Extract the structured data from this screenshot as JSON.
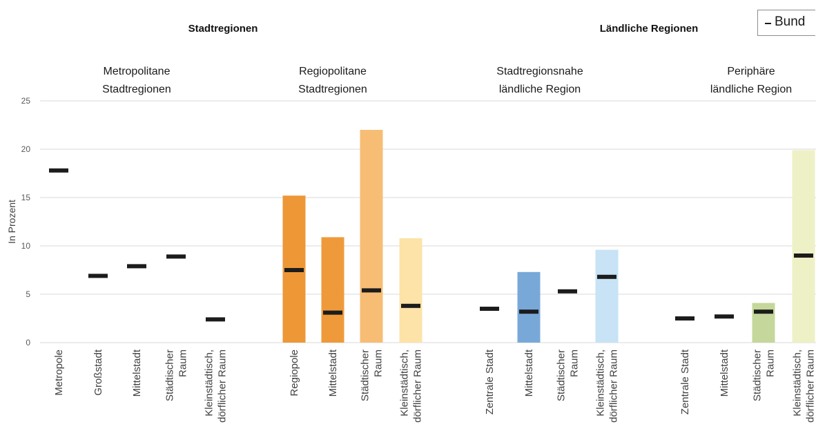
{
  "chart_data": {
    "type": "bar",
    "ylabel": "In Prozent",
    "ylim": [
      0,
      25
    ],
    "yticks": [
      "0",
      "5",
      "10",
      "15",
      "20",
      "25"
    ],
    "grid": true,
    "legend": {
      "label": "Bund",
      "marker": "–",
      "placement": "top-right"
    },
    "super_groups": [
      {
        "label": "Stadtregionen"
      },
      {
        "label": "Ländliche Regionen"
      }
    ],
    "groups": [
      {
        "label_lines": [
          "Metropolitane",
          "Stadtregionen"
        ],
        "categories": [
          {
            "label_lines": [
              "Metropole"
            ],
            "value": null,
            "bund": 17.8,
            "color": "#ffffff"
          },
          {
            "label_lines": [
              "Großstadt"
            ],
            "value": null,
            "bund": 6.9,
            "color": "#ffffff"
          },
          {
            "label_lines": [
              "Mittelstadt"
            ],
            "value": null,
            "bund": 7.9,
            "color": "#ffffff"
          },
          {
            "label_lines": [
              "Städtischer",
              "Raum"
            ],
            "value": null,
            "bund": 8.9,
            "color": "#ffffff"
          },
          {
            "label_lines": [
              "Kleinstädtisch,",
              "dörflicher Raum"
            ],
            "value": null,
            "bund": 2.4,
            "color": "#ffffff"
          }
        ]
      },
      {
        "label_lines": [
          "Regiopolitane",
          "Stadtregionen"
        ],
        "categories": [
          {
            "label_lines": [
              "Regiopole"
            ],
            "value": 15.2,
            "bund": 7.5,
            "color": "#ed9737"
          },
          {
            "label_lines": [
              "Mittelstadt"
            ],
            "value": 10.9,
            "bund": 3.1,
            "color": "#ef9a3a"
          },
          {
            "label_lines": [
              "Städtischer",
              "Raum"
            ],
            "value": 22.0,
            "bund": 5.4,
            "color": "#f7bd74"
          },
          {
            "label_lines": [
              "Kleinstädtisch,",
              "dörflicher Raum"
            ],
            "value": 10.8,
            "bund": 3.8,
            "color": "#fde3a8"
          }
        ]
      },
      {
        "label_lines": [
          "Stadtregionsnahe",
          "ländliche Region"
        ],
        "categories": [
          {
            "label_lines": [
              "Zentrale Stadt"
            ],
            "value": null,
            "bund": 3.5,
            "color": "#ffffff"
          },
          {
            "label_lines": [
              "Mittelstadt"
            ],
            "value": 7.3,
            "bund": 3.2,
            "color": "#78a8d8"
          },
          {
            "label_lines": [
              "Städtischer",
              "Raum"
            ],
            "value": null,
            "bund": 5.3,
            "color": "#ffffff"
          },
          {
            "label_lines": [
              "Kleinstädtisch,",
              "dörflicher Raum"
            ],
            "value": 9.6,
            "bund": 6.8,
            "color": "#c7e3f5"
          }
        ]
      },
      {
        "label_lines": [
          "Periphäre",
          "ländliche Region"
        ],
        "categories": [
          {
            "label_lines": [
              "Zentrale Stadt"
            ],
            "value": null,
            "bund": 2.5,
            "color": "#ffffff"
          },
          {
            "label_lines": [
              "Mittelstadt"
            ],
            "value": null,
            "bund": 2.7,
            "color": "#ffffff"
          },
          {
            "label_lines": [
              "Städtischer",
              "Raum"
            ],
            "value": 4.1,
            "bund": 3.2,
            "color": "#c5d79b"
          },
          {
            "label_lines": [
              "Kleinstädtisch,",
              "dörflicher Raum"
            ],
            "value": 19.9,
            "bund": 9.0,
            "color": "#eef0c6"
          }
        ]
      }
    ]
  }
}
